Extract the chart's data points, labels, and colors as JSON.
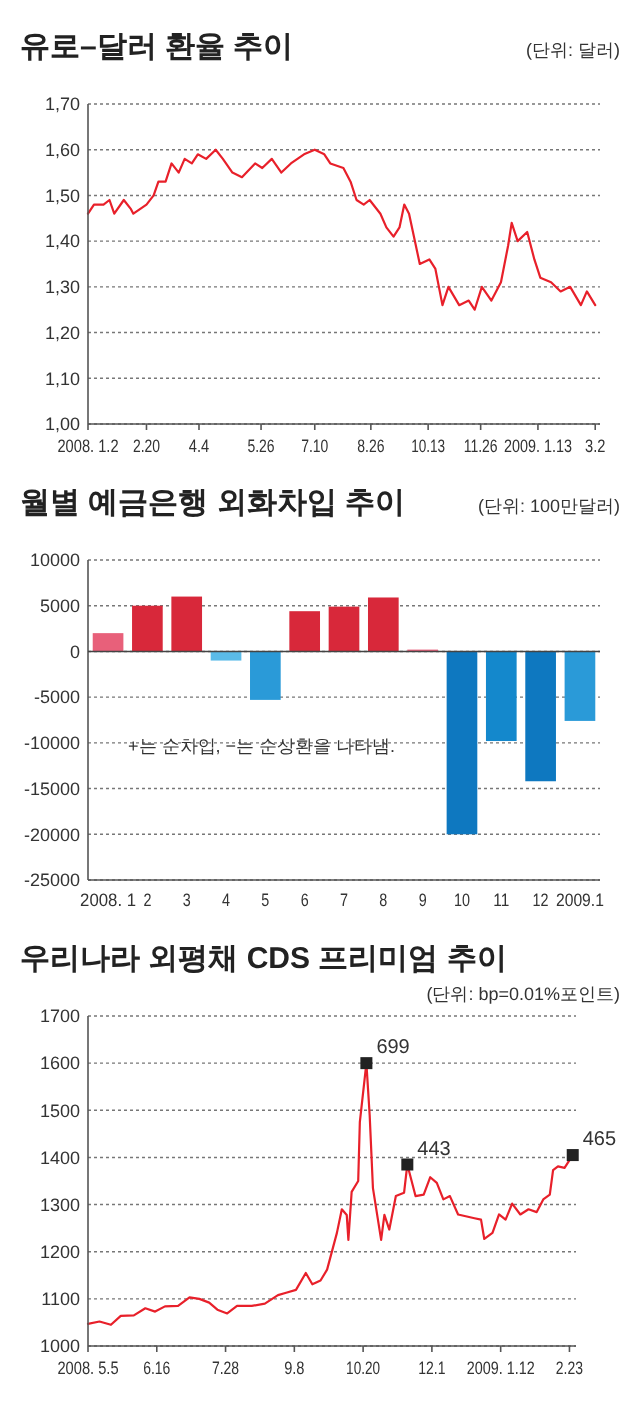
{
  "chart_data": [
    {
      "type": "line",
      "title": "유로–달러 환율 추이",
      "subtitle": "(단위: 달러)",
      "grid": "y",
      "x": [
        "2008-01-02",
        "2008-01-07",
        "2008-01-15",
        "2008-01-20",
        "2008-01-24",
        "2008-02-01",
        "2008-02-07",
        "2008-02-09",
        "2008-02-20",
        "2008-02-26",
        "2008-03-01",
        "2008-03-07",
        "2008-03-12",
        "2008-03-18",
        "2008-03-23",
        "2008-03-29",
        "2008-04-03",
        "2008-04-10",
        "2008-04-18",
        "2008-04-24",
        "2008-05-02",
        "2008-05-10",
        "2008-05-21",
        "2008-05-27",
        "2008-06-04",
        "2008-06-12",
        "2008-06-20",
        "2008-07-01",
        "2008-07-10",
        "2008-07-18",
        "2008-07-23",
        "2008-08-03",
        "2008-08-09",
        "2008-08-14",
        "2008-08-20",
        "2008-08-25",
        "2008-09-03",
        "2008-09-08",
        "2008-09-14",
        "2008-09-19",
        "2008-09-23",
        "2008-09-27",
        "2008-10-06",
        "2008-10-14",
        "2008-10-19",
        "2008-10-25",
        "2008-10-30",
        "2008-11-08",
        "2008-11-16",
        "2008-11-21",
        "2008-11-27",
        "2008-12-05",
        "2008-12-13",
        "2008-12-19",
        "2008-12-22",
        "2008-12-27",
        "2009-01-04",
        "2009-01-10",
        "2009-01-15",
        "2009-01-24",
        "2009-02-01",
        "2009-02-09",
        "2009-02-18",
        "2009-02-23",
        "2009-03-02"
      ],
      "series": [
        {
          "color": "#e8202a",
          "values": [
            1.46,
            1.48,
            1.48,
            1.49,
            1.46,
            1.49,
            1.47,
            1.46,
            1.48,
            1.5,
            1.53,
            1.53,
            1.57,
            1.55,
            1.58,
            1.57,
            1.59,
            1.58,
            1.6,
            1.58,
            1.55,
            1.54,
            1.57,
            1.56,
            1.58,
            1.55,
            1.57,
            1.59,
            1.6,
            1.59,
            1.57,
            1.56,
            1.53,
            1.49,
            1.48,
            1.49,
            1.46,
            1.43,
            1.41,
            1.43,
            1.48,
            1.46,
            1.35,
            1.36,
            1.34,
            1.26,
            1.3,
            1.26,
            1.27,
            1.25,
            1.3,
            1.27,
            1.31,
            1.39,
            1.44,
            1.4,
            1.42,
            1.36,
            1.32,
            1.31,
            1.29,
            1.3,
            1.26,
            1.29,
            1.26
          ]
        }
      ],
      "xlim": [
        "2008-01-02",
        "2009-03-06"
      ],
      "xticks": [
        {
          "value": "2008-01-02",
          "label": "2008. 1.2"
        },
        {
          "value": "2008-02-20",
          "label": "2.20"
        },
        {
          "value": "2008-04-04",
          "label": "4.4"
        },
        {
          "value": "2008-05-26",
          "label": "5.26"
        },
        {
          "value": "2008-07-10",
          "label": "7.10"
        },
        {
          "value": "2008-08-26",
          "label": "8.26"
        },
        {
          "value": "2008-10-13",
          "label": "10.13"
        },
        {
          "value": "2008-11-26",
          "label": "11.26"
        },
        {
          "value": "2009-01-13",
          "label": "2009. 1.13"
        },
        {
          "value": "2009-03-02",
          "label": "3.2"
        }
      ],
      "ylim": [
        1.0,
        1.7
      ],
      "yticks": [
        {
          "value": 1.0,
          "label": "1,00"
        },
        {
          "value": 1.1,
          "label": "1,10"
        },
        {
          "value": 1.2,
          "label": "1,20"
        },
        {
          "value": 1.3,
          "label": "1,30"
        },
        {
          "value": 1.4,
          "label": "1,40"
        },
        {
          "value": 1.5,
          "label": "1,50"
        },
        {
          "value": 1.6,
          "label": "1,60"
        },
        {
          "value": 1.7,
          "label": "1,70"
        }
      ]
    },
    {
      "type": "bar",
      "title": "월별 예금은행 외화차입 추이",
      "subtitle": "(단위: 100만달러)",
      "grid": "y",
      "categories": [
        "2008. 1",
        "2",
        "3",
        "4",
        "5",
        "6",
        "7",
        "8",
        "9",
        "10",
        "11",
        "12",
        "2009.1"
      ],
      "values": [
        2000,
        5000,
        6000,
        -1000,
        -5300,
        4400,
        4900,
        5900,
        200,
        -20000,
        -9800,
        -14200,
        -7600
      ],
      "colors": [
        "#e8607a",
        "#d8283a",
        "#d8283a",
        "#5bbbe8",
        "#2a9ad8",
        "#d8283a",
        "#d8283a",
        "#d8283a",
        "#e8607a",
        "#0e78c0",
        "#1488cc",
        "#0e78c0",
        "#2a9ad8"
      ],
      "ylim": [
        -25000,
        10000
      ],
      "yticks": [
        -25000,
        -20000,
        -15000,
        -10000,
        -5000,
        0,
        5000,
        10000
      ],
      "annotations": [
        "+는 순차입, −는 순상환을 나타냄."
      ]
    },
    {
      "type": "line",
      "title": "우리나라 외평채 CDS 프리미엄 추이",
      "subtitle": "(단위: bp=0.01%포인트)",
      "grid": "y",
      "x": [
        "2008-05-05",
        "2008-05-12",
        "2008-05-19",
        "2008-05-25",
        "2008-06-02",
        "2008-06-09",
        "2008-06-15",
        "2008-06-21",
        "2008-06-29",
        "2008-07-06",
        "2008-07-12",
        "2008-07-18",
        "2008-07-23",
        "2008-07-29",
        "2008-08-04",
        "2008-08-13",
        "2008-08-21",
        "2008-08-29",
        "2008-09-03",
        "2008-09-09",
        "2008-09-15",
        "2008-09-19",
        "2008-09-24",
        "2008-09-28",
        "2008-10-04",
        "2008-10-07",
        "2008-10-10",
        "2008-10-11",
        "2008-10-13",
        "2008-10-17",
        "2008-10-18",
        "2008-10-22",
        "2008-10-24",
        "2008-10-26",
        "2008-10-31",
        "2008-11-02",
        "2008-11-05",
        "2008-11-09",
        "2008-11-14",
        "2008-11-16",
        "2008-11-21",
        "2008-11-26",
        "2008-11-30",
        "2008-12-04",
        "2008-12-08",
        "2008-12-12",
        "2008-12-17",
        "2008-12-27",
        "2008-12-31",
        "2009-01-02",
        "2009-01-07",
        "2009-01-11",
        "2009-01-15",
        "2009-01-19",
        "2009-01-24",
        "2009-01-29",
        "2009-02-03",
        "2009-02-07",
        "2009-02-11",
        "2009-02-13",
        "2009-02-16",
        "2009-02-20",
        "2009-02-25"
      ],
      "annotations": [
        {
          "text": "699",
          "x": "2008-10-22",
          "y": 1600
        },
        {
          "text": "443",
          "x": "2008-11-16",
          "y": 1385
        },
        {
          "text": "465",
          "x": "2009-02-25",
          "y": 1405
        }
      ],
      "series": [
        {
          "color": "#e8202a",
          "values": [
            1047,
            1052,
            1045,
            1064,
            1065,
            1080,
            1073,
            1084,
            1085,
            1103,
            1100,
            1092,
            1077,
            1069,
            1085,
            1085,
            1090,
            1108,
            1113,
            1119,
            1155,
            1131,
            1139,
            1162,
            1240,
            1290,
            1278,
            1225,
            1327,
            1350,
            1475,
            1600,
            1490,
            1335,
            1225,
            1278,
            1247,
            1318,
            1325,
            1385,
            1318,
            1321,
            1358,
            1346,
            1311,
            1318,
            1279,
            1271,
            1268,
            1227,
            1240,
            1279,
            1268,
            1302,
            1279,
            1290,
            1284,
            1311,
            1321,
            1373,
            1381,
            1378,
            1405
          ]
        },
        {
          "type": "scatter",
          "color": "#222222",
          "marker": "square",
          "x": [
            "2008-10-22",
            "2008-11-16",
            "2009-02-25"
          ],
          "values": [
            1600,
            1385,
            1405
          ]
        }
      ],
      "xlim": [
        "2008-05-05",
        "2009-02-27"
      ],
      "xticks": [
        {
          "value": "2008-05-05",
          "label": "2008. 5.5"
        },
        {
          "value": "2008-06-16",
          "label": "6.16"
        },
        {
          "value": "2008-07-28",
          "label": "7.28"
        },
        {
          "value": "2008-09-08",
          "label": "9.8"
        },
        {
          "value": "2008-10-20",
          "label": "10.20"
        },
        {
          "value": "2008-12-01",
          "label": "12.1"
        },
        {
          "value": "2009-01-12",
          "label": "2009. 1.12"
        },
        {
          "value": "2009-02-23",
          "label": "2.23"
        }
      ],
      "ylim": [
        1000,
        1700
      ],
      "yticks": [
        1000,
        1100,
        1200,
        1300,
        1400,
        1500,
        1600,
        1700
      ]
    }
  ]
}
